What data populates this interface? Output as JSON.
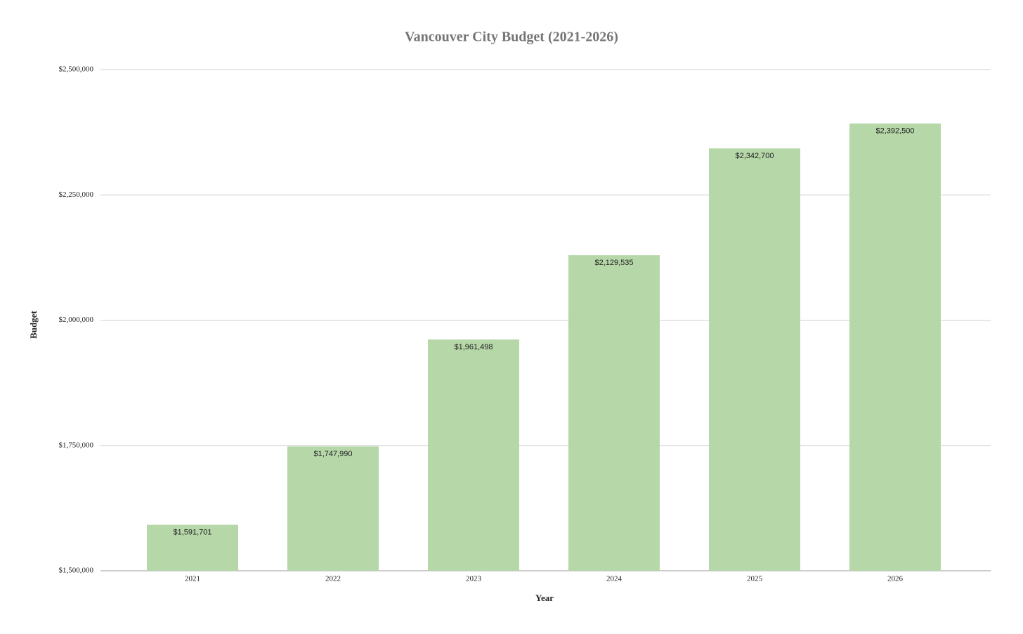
{
  "chart_data": {
    "type": "bar",
    "title": "Vancouver City Budget (2021-2026)",
    "x_label": "Year",
    "y_label": "Budget",
    "categories": [
      "2021",
      "2022",
      "2023",
      "2024",
      "2025",
      "2026"
    ],
    "values": [
      1591701,
      1747990,
      1961498,
      2129535,
      2342700,
      2392500
    ],
    "value_labels": [
      "$1,591,701",
      "$1,747,990",
      "$1,961,498",
      "$2,129,535",
      "$2,342,700",
      "$2,392,500"
    ],
    "color": "#b6d7a8",
    "ylim": [
      1500000,
      2500000
    ],
    "yticks": [
      {
        "value": 1500000,
        "label": "$1,500,000"
      },
      {
        "value": 1750000,
        "label": "$1,750,000"
      },
      {
        "value": 2000000,
        "label": "$2,000,000"
      },
      {
        "value": 2250000,
        "label": "$2,250,000"
      },
      {
        "value": 2500000,
        "label": "$2,500,000"
      }
    ],
    "grid": true
  }
}
